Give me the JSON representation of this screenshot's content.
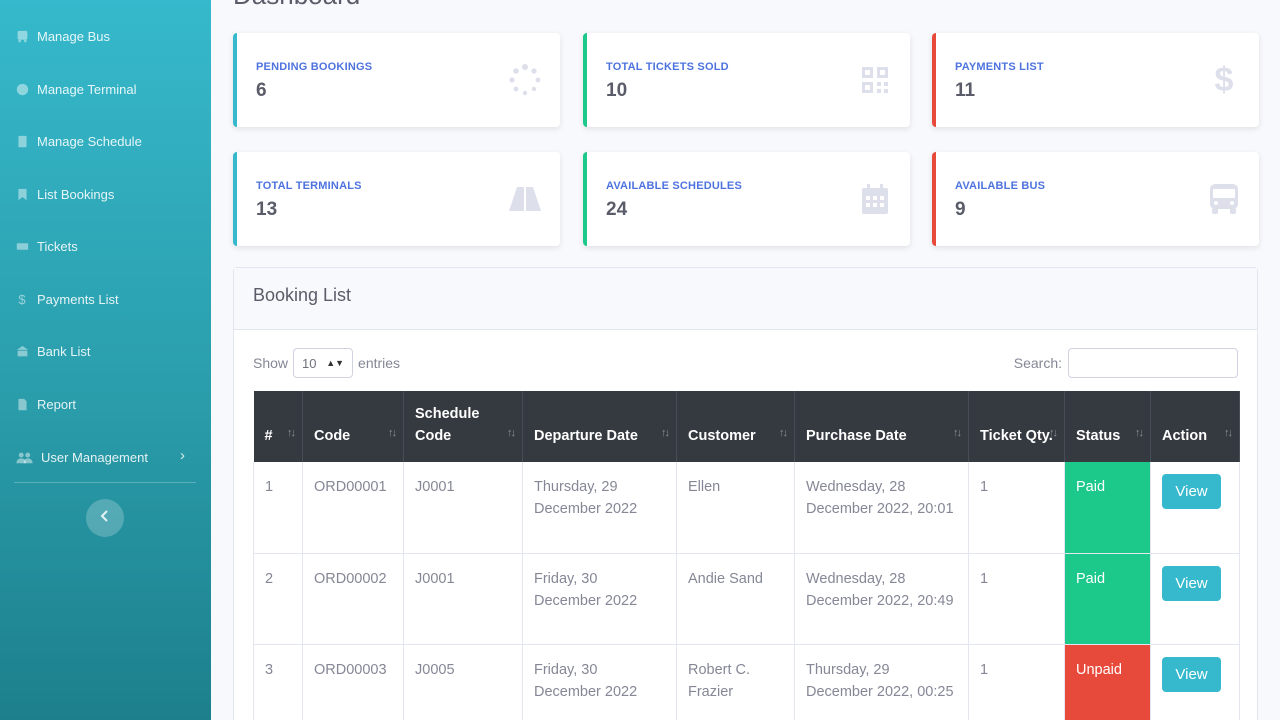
{
  "page": {
    "title": "Dashboard"
  },
  "sidebar": {
    "items": [
      {
        "label": "Manage Bus",
        "icon": "bus-icon"
      },
      {
        "label": "Manage Terminal",
        "icon": "compass-icon"
      },
      {
        "label": "Manage Schedule",
        "icon": "clipboard-icon"
      },
      {
        "label": "List Bookings",
        "icon": "bookmark-icon"
      },
      {
        "label": "Tickets",
        "icon": "ticket-icon"
      },
      {
        "label": "Payments List",
        "icon": "dollar-icon"
      },
      {
        "label": "Bank List",
        "icon": "bank-icon"
      },
      {
        "label": "Report",
        "icon": "file-icon"
      },
      {
        "label": "User Management",
        "icon": "users-icon"
      }
    ]
  },
  "cards": [
    {
      "label": "PENDING BOOKINGS",
      "value": "6",
      "color": "#36b9cc",
      "icon": "spinner-icon"
    },
    {
      "label": "TOTAL TICKETS SOLD",
      "value": "10",
      "color": "#1cc88a",
      "icon": "qrcode-icon"
    },
    {
      "label": "PAYMENTS LIST",
      "value": "11",
      "color": "#e74a3b",
      "icon": "dollar-icon"
    },
    {
      "label": "TOTAL TERMINALS",
      "value": "13",
      "color": "#36b9cc",
      "icon": "road-icon"
    },
    {
      "label": "AVAILABLE SCHEDULES",
      "value": "24",
      "color": "#1cc88a",
      "icon": "calendar-icon"
    },
    {
      "label": "AVAILABLE BUS",
      "value": "9",
      "color": "#e74a3b",
      "icon": "bus-icon"
    }
  ],
  "booking": {
    "title": "Booking List",
    "show_label": "Show",
    "entries_value": "10",
    "entries_label": "entries",
    "search_label": "Search:",
    "search_value": "",
    "columns": [
      "#",
      "Code",
      "Schedule Code",
      "Departure Date",
      "Customer",
      "Purchase Date",
      "Ticket Qty.",
      "Status",
      "Action"
    ],
    "rows": [
      {
        "no": "1",
        "code": "ORD00001",
        "schedule": "J0001",
        "departure": "Thursday, 29 December 2022",
        "customer": "Ellen",
        "purchase": "Wednesday, 28 December 2022, 20:01",
        "qty": "1",
        "status": "Paid",
        "action": "View"
      },
      {
        "no": "2",
        "code": "ORD00002",
        "schedule": "J0001",
        "departure": "Friday, 30 December 2022",
        "customer": "Andie Sand",
        "purchase": "Wednesday, 28 December 2022, 20:49",
        "qty": "1",
        "status": "Paid",
        "action": "View"
      },
      {
        "no": "3",
        "code": "ORD00003",
        "schedule": "J0005",
        "departure": "Friday, 30 December 2022",
        "customer": "Robert C. Frazier",
        "purchase": "Thursday, 29 December 2022, 00:25",
        "qty": "1",
        "status": "Unpaid",
        "action": "View"
      }
    ]
  },
  "colors": {
    "sidebar": "#36b9cc",
    "paid": "#1cc88a",
    "unpaid": "#e74a3b",
    "primary": "#4e73df",
    "header_dark": "#343a40"
  }
}
